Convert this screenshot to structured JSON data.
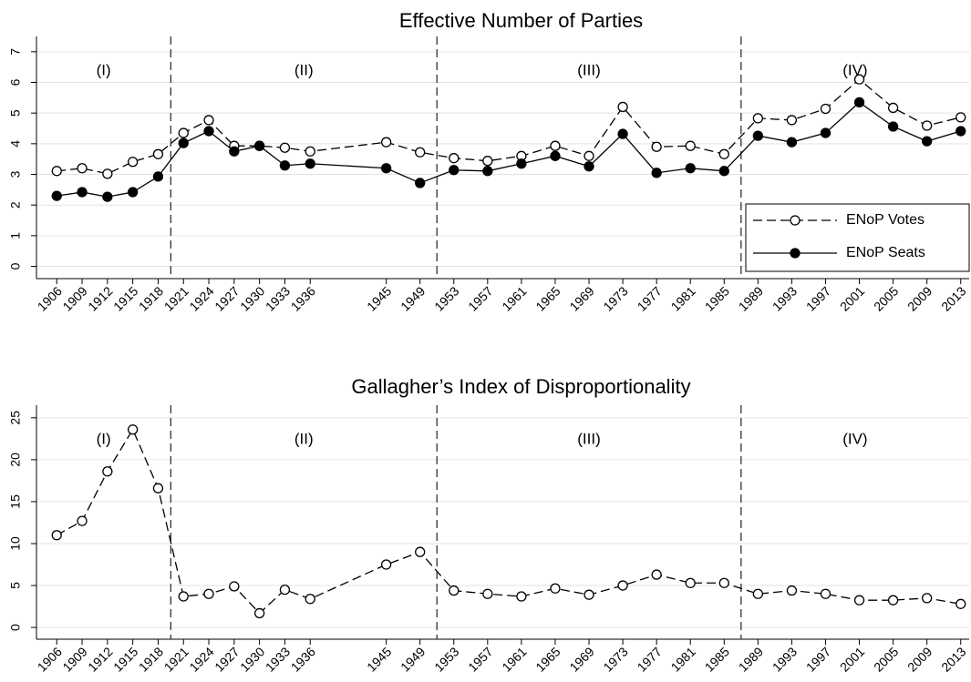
{
  "chart_data": [
    {
      "type": "line",
      "title": "Effective Number of Parties",
      "x": [
        1906,
        1909,
        1912,
        1915,
        1918,
        1921,
        1924,
        1927,
        1930,
        1933,
        1936,
        1945,
        1949,
        1953,
        1957,
        1961,
        1965,
        1969,
        1973,
        1977,
        1981,
        1985,
        1989,
        1993,
        1997,
        2001,
        2005,
        2009,
        2013
      ],
      "series": [
        {
          "name": "ENoP Votes",
          "color": "#000000",
          "dashed": true,
          "marker": "hollow",
          "values": [
            3.11,
            3.2,
            3.02,
            3.41,
            3.66,
            4.35,
            4.77,
            3.93,
            3.93,
            3.87,
            3.75,
            4.05,
            3.72,
            3.53,
            3.44,
            3.6,
            3.93,
            3.6,
            5.2,
            3.9,
            3.93,
            3.66,
            4.83,
            4.77,
            5.14,
            6.1,
            5.17,
            4.59,
            4.86
          ]
        },
        {
          "name": "ENoP Seats",
          "color": "#000000",
          "dashed": false,
          "marker": "filled",
          "values": [
            2.3,
            2.42,
            2.27,
            2.42,
            2.93,
            4.02,
            4.41,
            3.75,
            3.93,
            3.29,
            3.35,
            3.2,
            2.72,
            3.14,
            3.11,
            3.35,
            3.6,
            3.26,
            4.32,
            3.05,
            3.2,
            3.11,
            4.26,
            4.05,
            4.35,
            5.35,
            4.56,
            4.08,
            4.41
          ]
        }
      ],
      "xlim": [
        1903.6,
        2014
      ],
      "xticks": [
        1906,
        1909,
        1912,
        1915,
        1918,
        1921,
        1924,
        1927,
        1930,
        1933,
        1936,
        1945,
        1949,
        1953,
        1957,
        1961,
        1965,
        1969,
        1973,
        1977,
        1981,
        1985,
        1989,
        1993,
        1997,
        2001,
        2005,
        2009,
        2013
      ],
      "ylim": [
        -0.4,
        7.5
      ],
      "yticks": [
        0,
        1,
        2,
        3,
        4,
        5,
        6,
        7
      ],
      "grid": true,
      "legend": "lower right",
      "period_boundaries": [
        1919.5,
        1951,
        1987
      ],
      "period_labels": [
        "(I)",
        "(II)",
        "(III)",
        "(IV)"
      ]
    },
    {
      "type": "line",
      "title": "Gallagher’s Index of Disproportionality",
      "x": [
        1906,
        1909,
        1912,
        1915,
        1918,
        1921,
        1924,
        1927,
        1930,
        1933,
        1936,
        1945,
        1949,
        1953,
        1957,
        1961,
        1965,
        1969,
        1973,
        1977,
        1981,
        1985,
        1989,
        1993,
        1997,
        2001,
        2005,
        2009,
        2013
      ],
      "series": [
        {
          "color": "#000000",
          "dashed": true,
          "marker": "hollow",
          "values": [
            11.0,
            12.7,
            18.6,
            23.6,
            16.6,
            3.7,
            4.0,
            4.9,
            1.7,
            4.5,
            3.4,
            7.5,
            9.0,
            4.4,
            4.0,
            3.7,
            4.65,
            3.9,
            5.0,
            6.3,
            5.3,
            5.3,
            4.0,
            4.4,
            4.0,
            3.25,
            3.25,
            3.5,
            2.8
          ]
        }
      ],
      "xlim": [
        1903.6,
        2014
      ],
      "xticks": [
        1906,
        1909,
        1912,
        1915,
        1918,
        1921,
        1924,
        1927,
        1930,
        1933,
        1936,
        1945,
        1949,
        1953,
        1957,
        1961,
        1965,
        1969,
        1973,
        1977,
        1981,
        1985,
        1989,
        1993,
        1997,
        2001,
        2005,
        2009,
        2013
      ],
      "ylim": [
        -1.4,
        26.5
      ],
      "yticks": [
        0,
        5,
        10,
        15,
        20,
        25
      ],
      "grid": true,
      "period_boundaries": [
        1919.5,
        1951,
        1987
      ],
      "period_labels": [
        "(I)",
        "(II)",
        "(III)",
        "(IV)"
      ]
    }
  ]
}
